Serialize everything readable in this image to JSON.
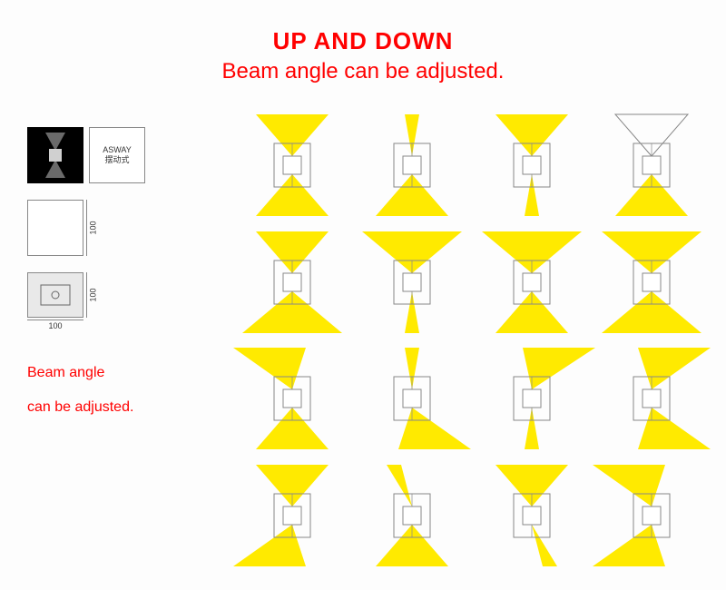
{
  "title": {
    "line1": "UP AND DOWN",
    "line2": "Beam angle can be adjusted.",
    "color": "#ff0000"
  },
  "legend": {
    "asway_label": "ASWAY",
    "asway_cn": "摆动式",
    "dim_100": "100"
  },
  "left_caption": {
    "line1": "Beam angle",
    "line2": "can be adjusted.",
    "color": "#ff0000"
  },
  "beam": {
    "color": "#ffea00",
    "fixture_stroke": "#888888",
    "fixture_fill": "#ffffff",
    "bg": "#fdfdfd"
  },
  "beam_grid": {
    "rows": 4,
    "cols": 4,
    "cells": [
      {
        "up_half": 40,
        "up_skew": 0,
        "dn_half": 40,
        "dn_skew": 0
      },
      {
        "up_half": 8,
        "up_skew": 0,
        "dn_half": 40,
        "dn_skew": 0
      },
      {
        "up_half": 40,
        "up_skew": 0,
        "dn_half": 8,
        "dn_skew": 0
      },
      {
        "up_half": 40,
        "up_skew": 0,
        "dn_half": 40,
        "dn_skew": 0,
        "outline_only_up": true
      },
      {
        "up_half": 40,
        "up_skew": 0,
        "dn_half": 55,
        "dn_skew": 0
      },
      {
        "up_half": 55,
        "up_skew": 0,
        "dn_half": 8,
        "dn_skew": 0
      },
      {
        "up_half": 55,
        "up_skew": 0,
        "dn_half": 40,
        "dn_skew": 0
      },
      {
        "up_half": 55,
        "up_skew": 0,
        "dn_half": 55,
        "dn_skew": 0
      },
      {
        "up_half": 40,
        "up_skew": -25,
        "dn_half": 40,
        "dn_skew": 0
      },
      {
        "up_half": 8,
        "up_skew": 0,
        "dn_half": 40,
        "dn_skew": 25
      },
      {
        "up_half": 40,
        "up_skew": 30,
        "dn_half": 8,
        "dn_skew": 0
      },
      {
        "up_half": 40,
        "up_skew": 25,
        "dn_half": 40,
        "dn_skew": 25
      },
      {
        "up_half": 40,
        "up_skew": 0,
        "dn_half": 40,
        "dn_skew": -25
      },
      {
        "up_half": 8,
        "up_skew": -20,
        "dn_half": 40,
        "dn_skew": 0
      },
      {
        "up_half": 40,
        "up_skew": 0,
        "dn_half": 8,
        "dn_skew": 20
      },
      {
        "up_half": 40,
        "up_skew": -25,
        "dn_half": 40,
        "dn_skew": -25
      }
    ]
  }
}
